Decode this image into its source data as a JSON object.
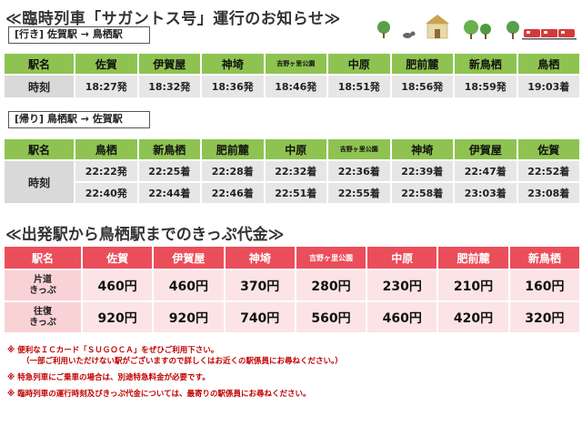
{
  "title": "≪臨時列車「サガントス号」運行のお知らせ≫",
  "outbound": {
    "route_label": "[行き] 佐賀駅 → 鳥栖駅",
    "header": [
      "駅名",
      "佐賀",
      "伊賀屋",
      "神埼",
      "吉野ヶ里公園",
      "中原",
      "肥前麓",
      "新鳥栖",
      "鳥栖"
    ],
    "row_label": "時刻",
    "times": [
      "18:27発",
      "18:32発",
      "18:36発",
      "18:46発",
      "18:51発",
      "18:56発",
      "18:59発",
      "19:03着"
    ]
  },
  "inbound": {
    "route_label": "[帰り] 鳥栖駅 → 佐賀駅",
    "header": [
      "駅名",
      "鳥栖",
      "新鳥栖",
      "肥前麓",
      "中原",
      "吉野ヶ里公園",
      "神埼",
      "伊賀屋",
      "佐賀"
    ],
    "row_label": "時刻",
    "rows": [
      [
        "22:22発",
        "22:25着",
        "22:28着",
        "22:32着",
        "22:36着",
        "22:39着",
        "22:47着",
        "22:52着"
      ],
      [
        "22:40発",
        "22:44着",
        "22:46着",
        "22:51着",
        "22:55着",
        "22:58着",
        "23:03着",
        "23:08着"
      ]
    ]
  },
  "fare_title": "≪出発駅から鳥栖駅までのきっぷ代金≫",
  "fares": {
    "header": [
      "駅名",
      "佐賀",
      "伊賀屋",
      "神埼",
      "吉野ヶ里公園",
      "中原",
      "肥前麓",
      "新鳥栖"
    ],
    "oneway_label": "片道\nきっぷ",
    "oneway": [
      "460円",
      "460円",
      "370円",
      "280円",
      "230円",
      "210円",
      "160円"
    ],
    "round_label": "往復\nきっぷ",
    "round": [
      "920円",
      "920円",
      "740円",
      "560円",
      "460円",
      "420円",
      "320円"
    ]
  },
  "notes": [
    "※ 便利なＩＣカード「ＳＵＧＯＣＡ」をぜひご利用下さい。",
    "（一部ご利用いただけない駅がございますので詳しくはお近くの駅係員にお尋ねください。）",
    "※ 特急列車にご乗車の場合は、別途特急料金が必要です。",
    "※ 臨時列車の運行時刻及びきっぷ代金については、最寄りの駅係員にお尋ねください。"
  ],
  "colors": {
    "green_header": "#8ec351",
    "red_header": "#ea4e5a",
    "note_red": "#c00000"
  },
  "decoration_icons": [
    "tree-icon",
    "cat-icon",
    "castle-icon",
    "train-icon"
  ]
}
